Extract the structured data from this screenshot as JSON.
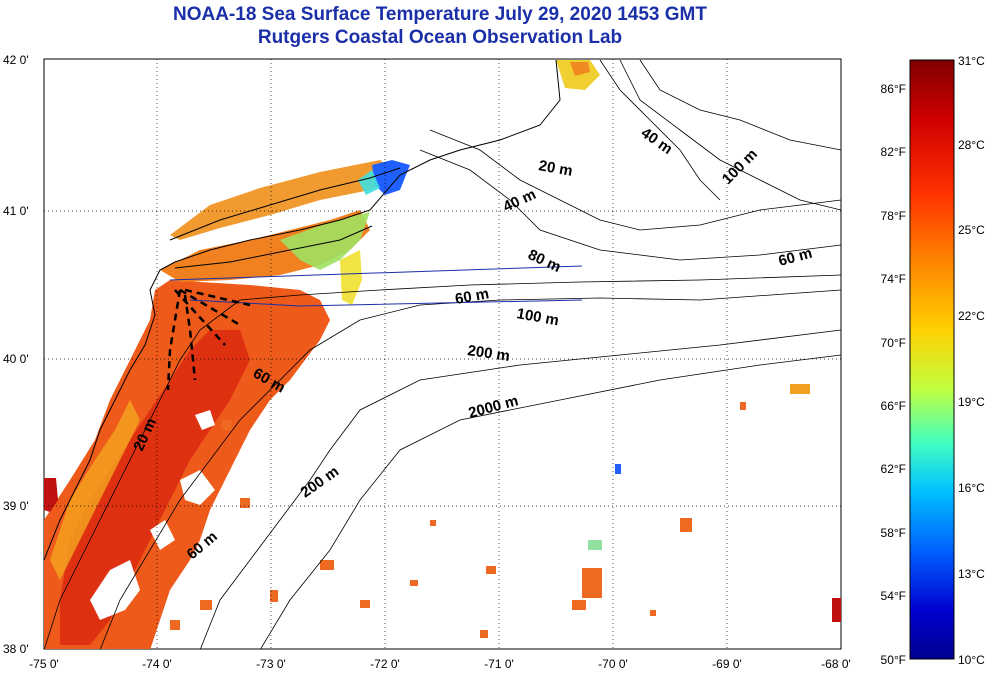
{
  "title": "NOAA-18 Sea Surface Temperature July 29, 2020 1453 GMT",
  "subtitle": "Rutgers Coastal Ocean Observation Lab",
  "x_ticks": [
    "-75 0'",
    "-74 0'",
    "-73 0'",
    "-72 0'",
    "-71 0'",
    "-70 0'",
    "-69 0'",
    "-68 0'"
  ],
  "y_ticks": [
    "42 0'",
    "41 0'",
    "40 0'",
    "39 0'",
    "38 0'"
  ],
  "contour_labels": [
    {
      "text": "40 m"
    },
    {
      "text": "100 m"
    },
    {
      "text": "20 m"
    },
    {
      "text": "40 m"
    },
    {
      "text": "60 m"
    },
    {
      "text": "60 m"
    },
    {
      "text": "80 m"
    },
    {
      "text": "100 m"
    },
    {
      "text": "200 m"
    },
    {
      "text": "60 m"
    },
    {
      "text": "2000 m"
    },
    {
      "text": "20 m"
    },
    {
      "text": "200 m"
    },
    {
      "text": "60 m"
    }
  ],
  "colorbar": {
    "celsius": [
      "31°C",
      "28°C",
      "25°C",
      "22°C",
      "19°C",
      "16°C",
      "13°C",
      "10°C"
    ],
    "fahrenheit": [
      "86°F",
      "82°F",
      "78°F",
      "74°F",
      "70°F",
      "66°F",
      "62°F",
      "58°F",
      "54°F",
      "50°F"
    ],
    "colors": [
      "#800000",
      "#d00000",
      "#ff3000",
      "#ff8000",
      "#ffd000",
      "#c0ff40",
      "#40ffc0",
      "#00c0ff",
      "#0060ff",
      "#0000d0",
      "#000090"
    ]
  },
  "colors": {
    "title": "#1a2fa8",
    "sst_warm": "#ee5a1a",
    "sst_hot": "#d92a10",
    "sst_mid": "#f5a020",
    "sst_cool": "#60e0c0",
    "sst_cold": "#2060ff"
  }
}
